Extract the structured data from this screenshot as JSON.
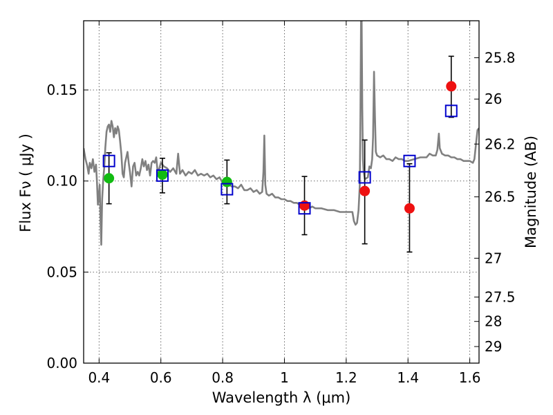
{
  "chart_data": {
    "type": "scatter",
    "xlabel": "Wavelength  λ (μm)",
    "ylabel": "Flux  Fν  ( μJy )",
    "ylabel_right": "Magnitude (AB)",
    "xlim": [
      0.35,
      1.63
    ],
    "ylim": [
      0.0,
      0.188
    ],
    "grid": true,
    "x_ticks": [
      0.4,
      0.6,
      0.8,
      1.0,
      1.2,
      1.4,
      1.6
    ],
    "x_tick_labels": [
      "0.4",
      "0.6",
      "0.8",
      "1",
      "1.2",
      "1.4",
      "1.6"
    ],
    "y_ticks": [
      0.0,
      0.05,
      0.1,
      0.15
    ],
    "y_tick_labels": [
      "0.00",
      "0.05",
      "0.10",
      "0.15"
    ],
    "right_ticks": [
      {
        "label": "25.8",
        "flux": 0.1677
      },
      {
        "label": "26",
        "flux": 0.145
      },
      {
        "label": "26.2",
        "flux": 0.1203
      },
      {
        "label": "26.5",
        "flux": 0.0913
      },
      {
        "label": "27",
        "flux": 0.0576
      },
      {
        "label": "27.5",
        "flux": 0.0363
      },
      {
        "label": "28",
        "flux": 0.0229
      },
      {
        "label": "29",
        "flux": 0.0091
      }
    ],
    "series": [
      {
        "style": "green-circle",
        "color": "#11bb11",
        "points": [
          {
            "x": 0.432,
            "y": 0.1015,
            "yerr": [
              0.0875,
              0.1155
            ]
          },
          {
            "x": 0.605,
            "y": 0.1035,
            "yerr": [
              0.0935,
              0.1125
            ]
          },
          {
            "x": 0.814,
            "y": 0.0995,
            "yerr": [
              0.0875,
              0.1115
            ]
          }
        ]
      },
      {
        "style": "red-circle",
        "color": "#ee1111",
        "points": [
          {
            "x": 1.065,
            "y": 0.0865,
            "yerr": [
              0.0705,
              0.1025
            ]
          },
          {
            "x": 1.26,
            "y": 0.0945,
            "yerr": [
              0.0655,
              0.1225
            ]
          },
          {
            "x": 1.405,
            "y": 0.085,
            "yerr": [
              0.061,
              0.1095
            ]
          },
          {
            "x": 1.54,
            "y": 0.152,
            "yerr": [
              0.135,
              0.1685
            ]
          }
        ]
      },
      {
        "style": "blue-square",
        "color": "#0000cc",
        "points": [
          {
            "x": 0.432,
            "y": 0.111
          },
          {
            "x": 0.605,
            "y": 0.103
          },
          {
            "x": 0.814,
            "y": 0.0955
          },
          {
            "x": 1.065,
            "y": 0.085
          },
          {
            "x": 1.26,
            "y": 0.102
          },
          {
            "x": 1.405,
            "y": 0.111
          },
          {
            "x": 1.54,
            "y": 0.1385
          }
        ]
      },
      {
        "style": "gray-line",
        "color": "#808080",
        "points": [
          [
            0.35,
            0.118
          ],
          [
            0.356,
            0.112
          ],
          [
            0.362,
            0.108
          ],
          [
            0.366,
            0.104
          ],
          [
            0.37,
            0.11
          ],
          [
            0.375,
            0.107
          ],
          [
            0.38,
            0.112
          ],
          [
            0.385,
            0.105
          ],
          [
            0.39,
            0.109
          ],
          [
            0.393,
            0.1
          ],
          [
            0.396,
            0.087
          ],
          [
            0.399,
            0.092
          ],
          [
            0.402,
            0.098
          ],
          [
            0.405,
            0.076
          ],
          [
            0.407,
            0.065
          ],
          [
            0.41,
            0.09
          ],
          [
            0.413,
            0.1
          ],
          [
            0.417,
            0.108
          ],
          [
            0.42,
            0.118
          ],
          [
            0.424,
            0.127
          ],
          [
            0.428,
            0.13
          ],
          [
            0.432,
            0.131
          ],
          [
            0.436,
            0.127
          ],
          [
            0.44,
            0.133
          ],
          [
            0.444,
            0.13
          ],
          [
            0.448,
            0.124
          ],
          [
            0.452,
            0.129
          ],
          [
            0.456,
            0.126
          ],
          [
            0.46,
            0.13
          ],
          [
            0.464,
            0.128
          ],
          [
            0.468,
            0.122
          ],
          [
            0.472,
            0.115
          ],
          [
            0.476,
            0.104
          ],
          [
            0.48,
            0.102
          ],
          [
            0.484,
            0.11
          ],
          [
            0.488,
            0.113
          ],
          [
            0.492,
            0.116
          ],
          [
            0.496,
            0.11
          ],
          [
            0.5,
            0.105
          ],
          [
            0.505,
            0.097
          ],
          [
            0.51,
            0.108
          ],
          [
            0.515,
            0.11
          ],
          [
            0.52,
            0.103
          ],
          [
            0.525,
            0.105
          ],
          [
            0.53,
            0.103
          ],
          [
            0.535,
            0.107
          ],
          [
            0.54,
            0.112
          ],
          [
            0.545,
            0.108
          ],
          [
            0.55,
            0.111
          ],
          [
            0.555,
            0.106
          ],
          [
            0.56,
            0.109
          ],
          [
            0.565,
            0.103
          ],
          [
            0.57,
            0.11
          ],
          [
            0.575,
            0.111
          ],
          [
            0.58,
            0.11
          ],
          [
            0.585,
            0.113
          ],
          [
            0.59,
            0.104
          ],
          [
            0.595,
            0.107
          ],
          [
            0.6,
            0.11
          ],
          [
            0.61,
            0.108
          ],
          [
            0.62,
            0.107
          ],
          [
            0.63,
            0.105
          ],
          [
            0.64,
            0.107
          ],
          [
            0.65,
            0.104
          ],
          [
            0.656,
            0.115
          ],
          [
            0.662,
            0.104
          ],
          [
            0.67,
            0.106
          ],
          [
            0.68,
            0.103
          ],
          [
            0.69,
            0.105
          ],
          [
            0.7,
            0.104
          ],
          [
            0.71,
            0.106
          ],
          [
            0.72,
            0.103
          ],
          [
            0.73,
            0.104
          ],
          [
            0.74,
            0.103
          ],
          [
            0.75,
            0.104
          ],
          [
            0.76,
            0.102
          ],
          [
            0.77,
            0.103
          ],
          [
            0.78,
            0.101
          ],
          [
            0.79,
            0.102
          ],
          [
            0.8,
            0.099
          ],
          [
            0.81,
            0.1
          ],
          [
            0.82,
            0.098
          ],
          [
            0.83,
            0.097
          ],
          [
            0.84,
            0.097
          ],
          [
            0.85,
            0.096
          ],
          [
            0.86,
            0.098
          ],
          [
            0.87,
            0.095
          ],
          [
            0.88,
            0.095
          ],
          [
            0.89,
            0.096
          ],
          [
            0.9,
            0.094
          ],
          [
            0.91,
            0.095
          ],
          [
            0.92,
            0.093
          ],
          [
            0.928,
            0.094
          ],
          [
            0.932,
            0.105
          ],
          [
            0.935,
            0.125
          ],
          [
            0.938,
            0.098
          ],
          [
            0.942,
            0.093
          ],
          [
            0.95,
            0.092
          ],
          [
            0.96,
            0.093
          ],
          [
            0.97,
            0.091
          ],
          [
            0.98,
            0.091
          ],
          [
            0.99,
            0.09
          ],
          [
            1.0,
            0.09
          ],
          [
            1.01,
            0.089
          ],
          [
            1.02,
            0.089
          ],
          [
            1.03,
            0.088
          ],
          [
            1.04,
            0.088
          ],
          [
            1.05,
            0.087
          ],
          [
            1.06,
            0.087
          ],
          [
            1.07,
            0.086
          ],
          [
            1.08,
            0.085
          ],
          [
            1.09,
            0.086
          ],
          [
            1.1,
            0.085
          ],
          [
            1.12,
            0.085
          ],
          [
            1.14,
            0.084
          ],
          [
            1.16,
            0.084
          ],
          [
            1.18,
            0.083
          ],
          [
            1.2,
            0.083
          ],
          [
            1.22,
            0.083
          ],
          [
            1.225,
            0.078
          ],
          [
            1.23,
            0.076
          ],
          [
            1.235,
            0.077
          ],
          [
            1.24,
            0.084
          ],
          [
            1.244,
            0.098
          ],
          [
            1.246,
            0.135
          ],
          [
            1.248,
            0.188
          ],
          [
            1.25,
            0.188
          ],
          [
            1.252,
            0.14
          ],
          [
            1.254,
            0.112
          ],
          [
            1.256,
            0.106
          ],
          [
            1.26,
            0.101
          ],
          [
            1.27,
            0.102
          ],
          [
            1.275,
            0.108
          ],
          [
            1.28,
            0.107
          ],
          [
            1.284,
            0.112
          ],
          [
            1.287,
            0.124
          ],
          [
            1.29,
            0.16
          ],
          [
            1.293,
            0.136
          ],
          [
            1.296,
            0.116
          ],
          [
            1.3,
            0.114
          ],
          [
            1.31,
            0.113
          ],
          [
            1.32,
            0.114
          ],
          [
            1.33,
            0.112
          ],
          [
            1.34,
            0.112
          ],
          [
            1.35,
            0.111
          ],
          [
            1.36,
            0.113
          ],
          [
            1.37,
            0.112
          ],
          [
            1.38,
            0.112
          ],
          [
            1.39,
            0.111
          ],
          [
            1.4,
            0.111
          ],
          [
            1.42,
            0.112
          ],
          [
            1.44,
            0.113
          ],
          [
            1.46,
            0.113
          ],
          [
            1.47,
            0.115
          ],
          [
            1.48,
            0.114
          ],
          [
            1.49,
            0.114
          ],
          [
            1.495,
            0.117
          ],
          [
            1.5,
            0.126
          ],
          [
            1.503,
            0.118
          ],
          [
            1.51,
            0.115
          ],
          [
            1.52,
            0.114
          ],
          [
            1.53,
            0.114
          ],
          [
            1.54,
            0.113
          ],
          [
            1.55,
            0.113
          ],
          [
            1.56,
            0.112
          ],
          [
            1.57,
            0.112
          ],
          [
            1.58,
            0.111
          ],
          [
            1.59,
            0.111
          ],
          [
            1.6,
            0.111
          ],
          [
            1.61,
            0.11
          ],
          [
            1.615,
            0.112
          ],
          [
            1.62,
            0.12
          ],
          [
            1.625,
            0.128
          ],
          [
            1.63,
            0.129
          ]
        ]
      }
    ]
  }
}
